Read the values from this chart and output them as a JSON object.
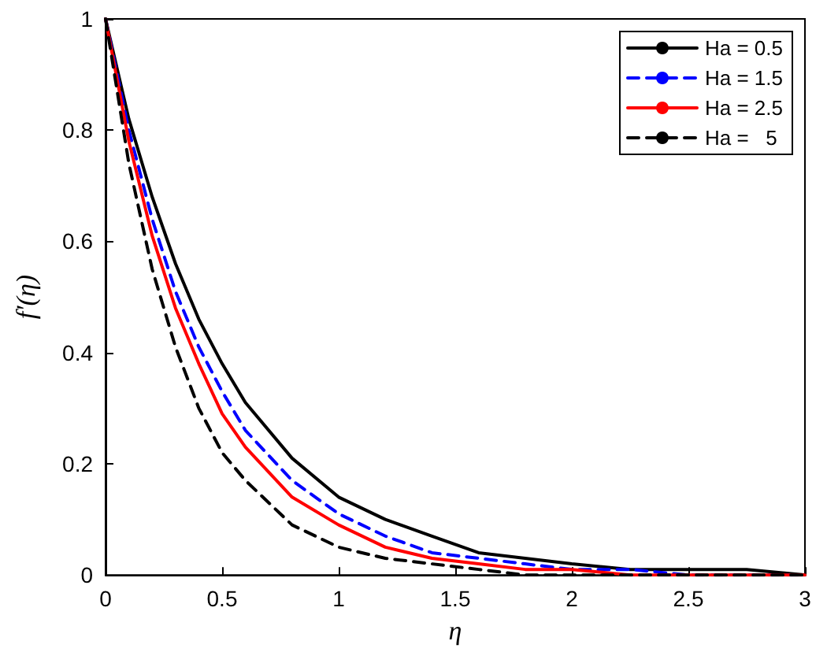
{
  "chart_data": {
    "type": "line",
    "xlabel": "η",
    "ylabel": "f′(η)",
    "x": [
      0,
      0.1,
      0.2,
      0.3,
      0.4,
      0.5,
      0.6,
      0.8,
      1,
      1.2,
      1.4,
      1.6,
      1.8,
      2,
      2.25,
      2.5,
      2.75,
      3
    ],
    "series": [
      {
        "name": "Ha = 0.5",
        "color": "#000000",
        "line_style": "solid",
        "values": [
          1,
          0.82,
          0.68,
          0.56,
          0.46,
          0.38,
          0.31,
          0.21,
          0.14,
          0.1,
          0.07,
          0.04,
          0.03,
          0.02,
          0.01,
          0.01,
          0.01,
          0
        ]
      },
      {
        "name": "Ha = 1.5",
        "color": "#0000ff",
        "line_style": "dashed",
        "values": [
          1,
          0.8,
          0.64,
          0.51,
          0.41,
          0.33,
          0.26,
          0.17,
          0.11,
          0.07,
          0.04,
          0.03,
          0.02,
          0.01,
          0.01,
          0,
          0,
          0
        ]
      },
      {
        "name": "Ha = 2.5",
        "color": "#ff0000",
        "line_style": "solid",
        "values": [
          1,
          0.78,
          0.61,
          0.48,
          0.38,
          0.29,
          0.23,
          0.14,
          0.09,
          0.05,
          0.03,
          0.02,
          0.01,
          0.01,
          0,
          0,
          0,
          0
        ]
      },
      {
        "name": "Ha =   5",
        "color": "#000000",
        "line_style": "dashed",
        "values": [
          1,
          0.74,
          0.55,
          0.41,
          0.3,
          0.22,
          0.17,
          0.09,
          0.05,
          0.03,
          0.02,
          0.01,
          0,
          0,
          0,
          0,
          0,
          0
        ]
      }
    ],
    "xlim": [
      0,
      3
    ],
    "xticks": [
      0,
      0.5,
      1,
      1.5,
      2,
      2.5,
      3
    ],
    "ylim": [
      0,
      1
    ],
    "yticks": [
      0,
      0.2,
      0.4,
      0.6,
      0.8,
      1
    ],
    "grid": false,
    "legend": "top right",
    "marker": "none"
  }
}
